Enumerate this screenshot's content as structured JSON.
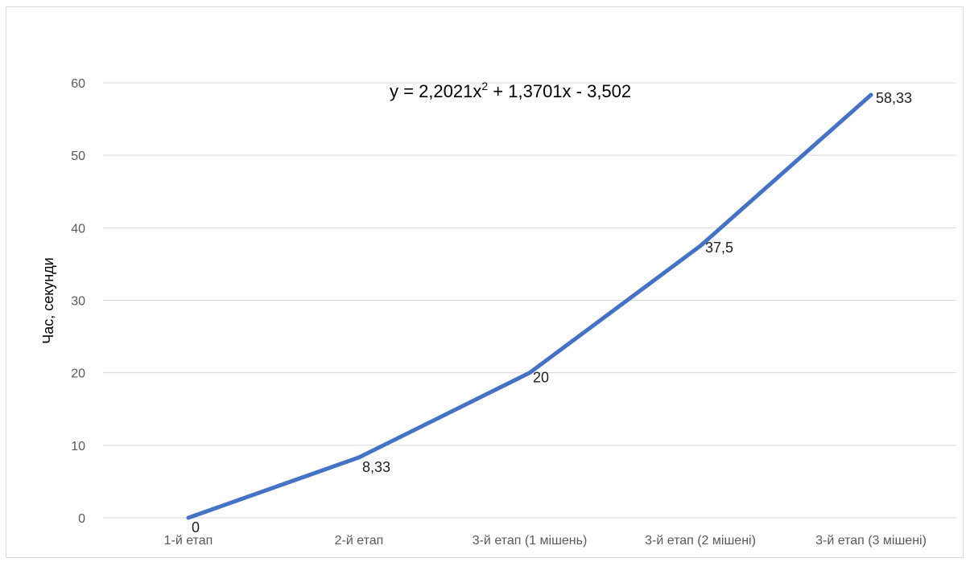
{
  "chart_data": {
    "type": "line",
    "title": "",
    "xlabel": "",
    "ylabel": "Час, секунди",
    "ylim": [
      0,
      60
    ],
    "yticks": [
      0,
      10,
      20,
      30,
      40,
      50,
      60
    ],
    "grid": true,
    "categories": [
      "1-й етап",
      "2-й етап",
      "3-й етап (1 мішень)",
      "3-й етап (2 мішені)",
      "3-й етап (3 мішені)"
    ],
    "series": [
      {
        "values": [
          0,
          8.33,
          20,
          37.5,
          58.33
        ],
        "data_labels": [
          "0",
          "8,33",
          "20",
          "37,5",
          "58,33"
        ],
        "color": "#4472c4"
      }
    ],
    "annotation": {
      "equation_prefix": "y = 2,2021x",
      "equation_exponent": "2",
      "equation_suffix": " + 1,3701x - 3,502"
    }
  },
  "colors": {
    "gridline": "#d9d9d9",
    "series": "#4472c4",
    "tick_text": "#595959"
  }
}
